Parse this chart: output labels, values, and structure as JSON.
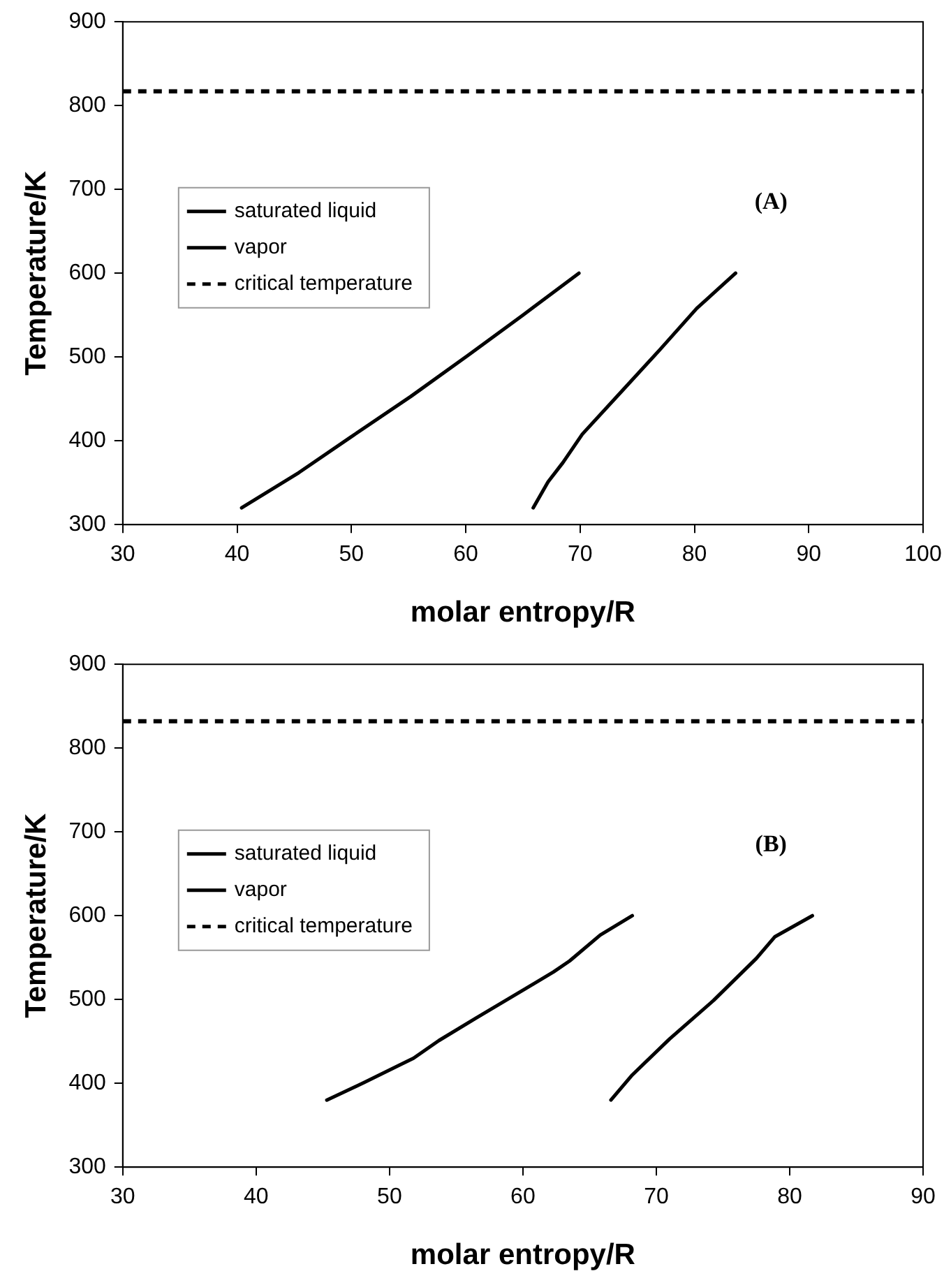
{
  "chart_data": [
    {
      "type": "line",
      "xlabel": "molar entropy/R",
      "ylabel": "Temperature/K",
      "xlim": [
        30,
        100
      ],
      "xticks": [
        30,
        40,
        50,
        60,
        70,
        80,
        90,
        100
      ],
      "ylim": [
        300,
        900
      ],
      "yticks": [
        300,
        400,
        500,
        600,
        700,
        800,
        900
      ],
      "grid": false,
      "legend": "left",
      "marker": "none",
      "line_style": "solid",
      "series": [
        {
          "name": "saturated liquid",
          "color": "#000000",
          "x": [
            40.4,
            45.4,
            49.9,
            55.2,
            60.1,
            65.0,
            69.9
          ],
          "values": [
            320,
            362,
            404,
            453,
            501,
            550,
            600
          ]
        },
        {
          "name": "vapor",
          "color": "#000000",
          "x": [
            65.9,
            67.2,
            68.5,
            70.2,
            73.7,
            77.0,
            80.2,
            83.6
          ],
          "values": [
            320,
            351,
            374,
            408,
            460,
            509,
            558,
            600
          ]
        }
      ],
      "ref_lines": [
        {
          "axis": "y",
          "value": 817,
          "label": "critical temperature",
          "color": "#000000",
          "line_style": "dashed"
        }
      ],
      "annotations": [
        "(A)"
      ]
    },
    {
      "type": "line",
      "xlabel": "molar entropy/R",
      "ylabel": "Temperature/K",
      "xlim": [
        30,
        90
      ],
      "xticks": [
        30,
        40,
        50,
        60,
        70,
        80,
        90
      ],
      "ylim": [
        300,
        900
      ],
      "yticks": [
        300,
        400,
        500,
        600,
        700,
        800,
        900
      ],
      "grid": false,
      "legend": "left",
      "marker": "none",
      "line_style": "solid",
      "series": [
        {
          "name": "saturated liquid",
          "color": "#000000",
          "x": [
            45.3,
            48.1,
            51.8,
            53.7,
            56.5,
            60.2,
            62.3,
            63.5,
            65.8,
            68.2
          ],
          "values": [
            380,
            401,
            430,
            451,
            478,
            513,
            533,
            546,
            577,
            600
          ]
        },
        {
          "name": "vapor",
          "color": "#000000",
          "x": [
            66.6,
            68.2,
            71.0,
            74.3,
            77.5,
            78.9,
            81.7
          ],
          "values": [
            380,
            410,
            453,
            499,
            549,
            575,
            600
          ]
        }
      ],
      "ref_lines": [
        {
          "axis": "y",
          "value": 832,
          "label": "critical temperature",
          "color": "#000000",
          "line_style": "dashed"
        }
      ],
      "annotations": [
        "(B)"
      ]
    }
  ]
}
